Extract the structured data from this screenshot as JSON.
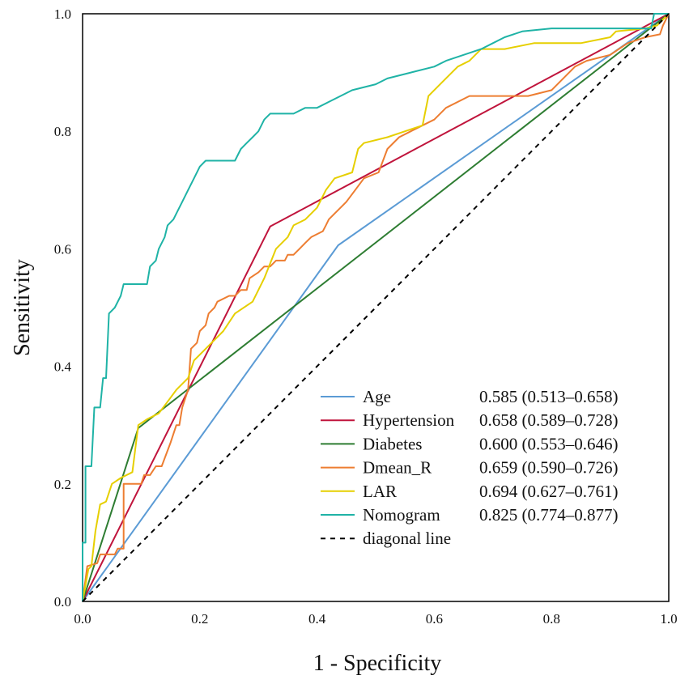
{
  "chart_data": {
    "type": "line",
    "title": "",
    "xlabel": "1 - Specificity",
    "ylabel": "Sensitivity",
    "xlim": [
      0,
      1
    ],
    "ylim": [
      0,
      1
    ],
    "x_ticks": [
      "0.0",
      "0.2",
      "0.4",
      "0.6",
      "0.8",
      "1.0"
    ],
    "y_ticks": [
      "0.0",
      "0.2",
      "0.4",
      "0.6",
      "0.8",
      "1.0"
    ],
    "legend_position": "bottom-right",
    "series": [
      {
        "name": "Age",
        "auc": "0.585 (0.513–0.658)",
        "color": "#5b9bd5",
        "points": [
          [
            0,
            0
          ],
          [
            0.436,
            0.606
          ],
          [
            1,
            1
          ]
        ]
      },
      {
        "name": "Hypertension",
        "auc": "0.658 (0.589–0.728)",
        "color": "#c0143c",
        "points": [
          [
            0,
            0
          ],
          [
            0.32,
            0.638
          ],
          [
            1,
            1
          ]
        ]
      },
      {
        "name": "Diabetes",
        "auc": "0.600 (0.553–0.646)",
        "color": "#2e7d32",
        "points": [
          [
            0,
            0
          ],
          [
            0.095,
            0.295
          ],
          [
            1,
            1
          ]
        ]
      },
      {
        "name": "Dmean_R",
        "auc": "0.659 (0.590–0.726)",
        "color": "#ed7d31",
        "points": [
          [
            0,
            0
          ],
          [
            0.008,
            0.06
          ],
          [
            0.025,
            0.065
          ],
          [
            0.03,
            0.08
          ],
          [
            0.055,
            0.08
          ],
          [
            0.06,
            0.09
          ],
          [
            0.07,
            0.09
          ],
          [
            0.07,
            0.2
          ],
          [
            0.1,
            0.2
          ],
          [
            0.105,
            0.215
          ],
          [
            0.115,
            0.215
          ],
          [
            0.125,
            0.23
          ],
          [
            0.135,
            0.23
          ],
          [
            0.15,
            0.27
          ],
          [
            0.16,
            0.3
          ],
          [
            0.165,
            0.3
          ],
          [
            0.17,
            0.33
          ],
          [
            0.18,
            0.36
          ],
          [
            0.185,
            0.43
          ],
          [
            0.195,
            0.44
          ],
          [
            0.2,
            0.46
          ],
          [
            0.21,
            0.47
          ],
          [
            0.215,
            0.49
          ],
          [
            0.225,
            0.5
          ],
          [
            0.23,
            0.51
          ],
          [
            0.25,
            0.52
          ],
          [
            0.26,
            0.52
          ],
          [
            0.27,
            0.53
          ],
          [
            0.28,
            0.53
          ],
          [
            0.285,
            0.55
          ],
          [
            0.3,
            0.56
          ],
          [
            0.31,
            0.57
          ],
          [
            0.32,
            0.57
          ],
          [
            0.33,
            0.58
          ],
          [
            0.345,
            0.58
          ],
          [
            0.35,
            0.59
          ],
          [
            0.36,
            0.59
          ],
          [
            0.37,
            0.6
          ],
          [
            0.38,
            0.61
          ],
          [
            0.39,
            0.62
          ],
          [
            0.41,
            0.63
          ],
          [
            0.415,
            0.64
          ],
          [
            0.42,
            0.65
          ],
          [
            0.43,
            0.66
          ],
          [
            0.44,
            0.67
          ],
          [
            0.45,
            0.68
          ],
          [
            0.465,
            0.7
          ],
          [
            0.48,
            0.72
          ],
          [
            0.505,
            0.73
          ],
          [
            0.52,
            0.77
          ],
          [
            0.54,
            0.79
          ],
          [
            0.56,
            0.8
          ],
          [
            0.6,
            0.82
          ],
          [
            0.62,
            0.84
          ],
          [
            0.66,
            0.86
          ],
          [
            0.76,
            0.86
          ],
          [
            0.8,
            0.87
          ],
          [
            0.84,
            0.91
          ],
          [
            0.86,
            0.92
          ],
          [
            0.9,
            0.93
          ],
          [
            0.93,
            0.95
          ],
          [
            0.96,
            0.96
          ],
          [
            0.985,
            0.965
          ],
          [
            0.99,
            0.98
          ],
          [
            0.995,
            0.99
          ],
          [
            1,
            1
          ]
        ]
      },
      {
        "name": "LAR",
        "auc": "0.694 (0.627–0.761)",
        "color": "#e6cf00",
        "points": [
          [
            0,
            0
          ],
          [
            0.01,
            0.055
          ],
          [
            0.015,
            0.06
          ],
          [
            0.022,
            0.12
          ],
          [
            0.03,
            0.165
          ],
          [
            0.04,
            0.17
          ],
          [
            0.05,
            0.2
          ],
          [
            0.065,
            0.21
          ],
          [
            0.085,
            0.22
          ],
          [
            0.095,
            0.3
          ],
          [
            0.11,
            0.31
          ],
          [
            0.13,
            0.32
          ],
          [
            0.145,
            0.34
          ],
          [
            0.16,
            0.36
          ],
          [
            0.18,
            0.38
          ],
          [
            0.19,
            0.41
          ],
          [
            0.22,
            0.44
          ],
          [
            0.24,
            0.46
          ],
          [
            0.26,
            0.49
          ],
          [
            0.29,
            0.51
          ],
          [
            0.31,
            0.55
          ],
          [
            0.33,
            0.6
          ],
          [
            0.35,
            0.62
          ],
          [
            0.36,
            0.64
          ],
          [
            0.38,
            0.65
          ],
          [
            0.39,
            0.66
          ],
          [
            0.4,
            0.67
          ],
          [
            0.415,
            0.7
          ],
          [
            0.43,
            0.72
          ],
          [
            0.46,
            0.73
          ],
          [
            0.47,
            0.77
          ],
          [
            0.48,
            0.78
          ],
          [
            0.52,
            0.79
          ],
          [
            0.55,
            0.8
          ],
          [
            0.58,
            0.81
          ],
          [
            0.59,
            0.86
          ],
          [
            0.61,
            0.88
          ],
          [
            0.63,
            0.9
          ],
          [
            0.64,
            0.91
          ],
          [
            0.66,
            0.92
          ],
          [
            0.68,
            0.94
          ],
          [
            0.72,
            0.94
          ],
          [
            0.77,
            0.95
          ],
          [
            0.85,
            0.95
          ],
          [
            0.9,
            0.96
          ],
          [
            0.91,
            0.97
          ],
          [
            0.96,
            0.975
          ],
          [
            0.98,
            0.98
          ],
          [
            1,
            1
          ]
        ]
      },
      {
        "name": "Nomogram",
        "auc": "0.825 (0.774–0.877)",
        "color": "#1fb3a6",
        "points": [
          [
            0,
            0
          ],
          [
            0,
            0.1
          ],
          [
            0.005,
            0.1
          ],
          [
            0.005,
            0.23
          ],
          [
            0.015,
            0.23
          ],
          [
            0.02,
            0.33
          ],
          [
            0.03,
            0.33
          ],
          [
            0.035,
            0.38
          ],
          [
            0.04,
            0.38
          ],
          [
            0.045,
            0.49
          ],
          [
            0.055,
            0.5
          ],
          [
            0.065,
            0.52
          ],
          [
            0.07,
            0.54
          ],
          [
            0.085,
            0.54
          ],
          [
            0.09,
            0.54
          ],
          [
            0.11,
            0.54
          ],
          [
            0.115,
            0.57
          ],
          [
            0.125,
            0.58
          ],
          [
            0.13,
            0.6
          ],
          [
            0.14,
            0.62
          ],
          [
            0.145,
            0.64
          ],
          [
            0.155,
            0.65
          ],
          [
            0.16,
            0.66
          ],
          [
            0.17,
            0.68
          ],
          [
            0.18,
            0.7
          ],
          [
            0.19,
            0.72
          ],
          [
            0.2,
            0.74
          ],
          [
            0.21,
            0.75
          ],
          [
            0.26,
            0.75
          ],
          [
            0.27,
            0.77
          ],
          [
            0.28,
            0.78
          ],
          [
            0.29,
            0.79
          ],
          [
            0.3,
            0.8
          ],
          [
            0.31,
            0.82
          ],
          [
            0.32,
            0.83
          ],
          [
            0.36,
            0.83
          ],
          [
            0.38,
            0.84
          ],
          [
            0.4,
            0.84
          ],
          [
            0.42,
            0.85
          ],
          [
            0.44,
            0.86
          ],
          [
            0.46,
            0.87
          ],
          [
            0.5,
            0.88
          ],
          [
            0.52,
            0.89
          ],
          [
            0.56,
            0.9
          ],
          [
            0.6,
            0.91
          ],
          [
            0.62,
            0.92
          ],
          [
            0.65,
            0.93
          ],
          [
            0.68,
            0.94
          ],
          [
            0.7,
            0.95
          ],
          [
            0.72,
            0.96
          ],
          [
            0.75,
            0.97
          ],
          [
            0.8,
            0.975
          ],
          [
            0.97,
            0.975
          ],
          [
            0.975,
            1
          ],
          [
            1,
            1
          ]
        ]
      },
      {
        "name": "diagonal line",
        "auc": "",
        "color": "#000000",
        "dashed": true,
        "points": [
          [
            0,
            0
          ],
          [
            1,
            1
          ]
        ]
      }
    ]
  }
}
